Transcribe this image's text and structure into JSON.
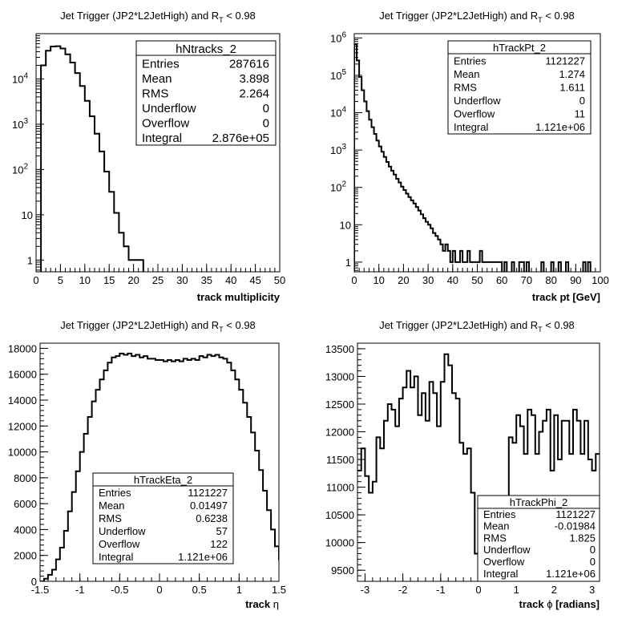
{
  "chart_data": [
    {
      "type": "histogram",
      "title": "Jet Trigger (JP2*L2JetHigh) and R",
      "title_sub": "T",
      "title_suffix": " < 0.98",
      "xlabel": "track multiplicity",
      "x_label_symbol": "",
      "x_label_suffix": "",
      "xlim": [
        0,
        50
      ],
      "x_ticks": [
        0,
        5,
        10,
        15,
        20,
        25,
        30,
        35,
        40,
        45,
        50
      ],
      "y_scale": "log",
      "ylim": [
        0.55,
        100000
      ],
      "y_ticks": [
        {
          "v": 1,
          "base": "1",
          "exp": ""
        },
        {
          "v": 10,
          "base": "10",
          "exp": ""
        },
        {
          "v": 100,
          "base": "10",
          "exp": "2"
        },
        {
          "v": 1000,
          "base": "10",
          "exp": "3"
        },
        {
          "v": 10000,
          "base": "10",
          "exp": "4"
        }
      ],
      "bin_width": 1,
      "values": [
        0,
        20000,
        42000,
        52000,
        53000,
        47000,
        35000,
        23000,
        13500,
        7000,
        3300,
        1500,
        620,
        250,
        90,
        32,
        11,
        4,
        2,
        1,
        1,
        1,
        0,
        0,
        0
      ],
      "stats": {
        "name": "hNtracks_2",
        "rows": [
          {
            "label": "Entries",
            "value": "287616"
          },
          {
            "label": "Mean",
            "value": "3.898"
          },
          {
            "label": "RMS",
            "value": "2.264"
          },
          {
            "label": "Underflow",
            "value": "0"
          },
          {
            "label": "Overflow",
            "value": "0"
          },
          {
            "label": "Integral",
            "value": "2.876e+05"
          }
        ]
      }
    },
    {
      "type": "histogram",
      "title": "Jet Trigger (JP2*L2JetHigh) and R",
      "title_sub": "T",
      "title_suffix": " < 0.98",
      "xlabel": "track pt [GeV]",
      "x_label_symbol": "",
      "x_label_suffix": "",
      "xlim": [
        0,
        100
      ],
      "x_ticks": [
        0,
        10,
        20,
        30,
        40,
        50,
        60,
        70,
        80,
        90,
        100
      ],
      "y_scale": "log",
      "ylim": [
        0.55,
        1300000
      ],
      "y_ticks": [
        {
          "v": 1,
          "base": "1",
          "exp": ""
        },
        {
          "v": 10,
          "base": "10",
          "exp": ""
        },
        {
          "v": 100,
          "base": "10",
          "exp": "2"
        },
        {
          "v": 1000,
          "base": "10",
          "exp": "3"
        },
        {
          "v": 10000,
          "base": "10",
          "exp": "4"
        },
        {
          "v": 100000,
          "base": "10",
          "exp": "5"
        },
        {
          "v": 1000000,
          "base": "10",
          "exp": "6"
        }
      ],
      "bin_width": 1,
      "values": [
        680000,
        250000,
        90000,
        40000,
        20000,
        11000,
        6500,
        4100,
        2700,
        1800,
        1250,
        900,
        650,
        480,
        360,
        280,
        220,
        170,
        135,
        105,
        85,
        68,
        55,
        45,
        37,
        30,
        24,
        19,
        15,
        12,
        10,
        8,
        6,
        5,
        4,
        3,
        2,
        3,
        2,
        1,
        2,
        1,
        1,
        2,
        1,
        1,
        2,
        1,
        1,
        1,
        1,
        2,
        1,
        1,
        1,
        1,
        1,
        1,
        1,
        1,
        0,
        1,
        0,
        0,
        1,
        0,
        0,
        1,
        1,
        0,
        1,
        0,
        0,
        0,
        0,
        0,
        1,
        0,
        0,
        0,
        1,
        0,
        0,
        1,
        0,
        0,
        1,
        0,
        0,
        0,
        0,
        0,
        0,
        1,
        0,
        1,
        0,
        0,
        0,
        0
      ],
      "stats": {
        "name": "hTrackPt_2",
        "rows": [
          {
            "label": "Entries",
            "value": "1121227"
          },
          {
            "label": "Mean",
            "value": "1.274"
          },
          {
            "label": "RMS",
            "value": "1.611"
          },
          {
            "label": "Underflow",
            "value": "0"
          },
          {
            "label": "Overflow",
            "value": "11"
          },
          {
            "label": "Integral",
            "value": "1.121e+06"
          }
        ]
      }
    },
    {
      "type": "histogram",
      "title": "Jet Trigger (JP2*L2JetHigh) and R",
      "title_sub": "T",
      "title_suffix": " < 0.98",
      "xlabel": "track ",
      "x_label_symbol": "η",
      "x_label_suffix": "",
      "xlim": [
        -1.5,
        1.5
      ],
      "x_ticks": [
        -1.5,
        -1,
        -0.5,
        0,
        0.5,
        1,
        1.5
      ],
      "y_scale": "linear",
      "ylim": [
        0,
        18400
      ],
      "y_ticks": [
        {
          "v": 0,
          "base": "0",
          "exp": ""
        },
        {
          "v": 2000,
          "base": "2000",
          "exp": ""
        },
        {
          "v": 4000,
          "base": "4000",
          "exp": ""
        },
        {
          "v": 6000,
          "base": "6000",
          "exp": ""
        },
        {
          "v": 8000,
          "base": "8000",
          "exp": ""
        },
        {
          "v": 10000,
          "base": "10000",
          "exp": ""
        },
        {
          "v": 12000,
          "base": "12000",
          "exp": ""
        },
        {
          "v": 14000,
          "base": "14000",
          "exp": ""
        },
        {
          "v": 16000,
          "base": "16000",
          "exp": ""
        },
        {
          "v": 18000,
          "base": "18000",
          "exp": ""
        }
      ],
      "bin_width": 0.05,
      "values": [
        0,
        200,
        500,
        900,
        1700,
        2600,
        3900,
        5400,
        6900,
        8500,
        10000,
        11400,
        12700,
        13900,
        14800,
        15600,
        16300,
        16900,
        17300,
        17400,
        17600,
        17500,
        17600,
        17400,
        17500,
        17300,
        17400,
        17200,
        17200,
        17100,
        17100,
        17000,
        17100,
        17000,
        17100,
        17000,
        17200,
        17100,
        17200,
        17100,
        17400,
        17300,
        17500,
        17400,
        17500,
        17300,
        17200,
        16900,
        16300,
        15600,
        14800,
        13800,
        12700,
        11500,
        10100,
        8600,
        7000,
        5500,
        4000,
        2700,
        1700,
        900,
        400,
        100
      ],
      "stats": {
        "name": "hTrackEta_2",
        "rows": [
          {
            "label": "Entries",
            "value": "1121227"
          },
          {
            "label": "Mean",
            "value": "0.01497"
          },
          {
            "label": "RMS",
            "value": "0.6238"
          },
          {
            "label": "Underflow",
            "value": "57"
          },
          {
            "label": "Overflow",
            "value": "122"
          },
          {
            "label": "Integral",
            "value": "1.121e+06"
          }
        ]
      }
    },
    {
      "type": "histogram",
      "title": "Jet Trigger (JP2*L2JetHigh) and R",
      "title_sub": "T",
      "title_suffix": " < 0.98",
      "xlabel": "track ",
      "x_label_symbol": "ϕ",
      "x_label_suffix": " [radians]",
      "xlim": [
        -3.2,
        3.2
      ],
      "x_ticks": [
        -3,
        -2,
        -1,
        0,
        1,
        2,
        3
      ],
      "y_scale": "linear",
      "ylim": [
        9300,
        13600
      ],
      "y_ticks": [
        {
          "v": 9500,
          "base": "9500",
          "exp": ""
        },
        {
          "v": 10000,
          "base": "10000",
          "exp": ""
        },
        {
          "v": 10500,
          "base": "10500",
          "exp": ""
        },
        {
          "v": 11000,
          "base": "11000",
          "exp": ""
        },
        {
          "v": 11500,
          "base": "11500",
          "exp": ""
        },
        {
          "v": 12000,
          "base": "12000",
          "exp": ""
        },
        {
          "v": 12500,
          "base": "12500",
          "exp": ""
        },
        {
          "v": 13000,
          "base": "13000",
          "exp": ""
        },
        {
          "v": 13500,
          "base": "13500",
          "exp": ""
        }
      ],
      "bin_width": 0.1,
      "values": [
        11300,
        11700,
        11200,
        10900,
        11100,
        11900,
        11700,
        12200,
        12500,
        12400,
        12100,
        12600,
        12800,
        13100,
        12800,
        13000,
        12300,
        12700,
        12200,
        12900,
        12700,
        12100,
        12900,
        13400,
        13200,
        12700,
        12600,
        11800,
        11600,
        11700,
        10900,
        9800,
        9400,
        10300,
        10400,
        10200,
        10000,
        10300,
        10700,
        10800,
        11900,
        11800,
        12300,
        12100,
        11600,
        12400,
        12300,
        11600,
        12000,
        12200,
        12400,
        11300,
        12300,
        11500,
        12200,
        12200,
        11600,
        12400,
        12200,
        11600,
        12200,
        11500,
        11300,
        11600
      ],
      "stats": {
        "name": "hTrackPhi_2",
        "rows": [
          {
            "label": "Entries",
            "value": "1121227"
          },
          {
            "label": "Mean",
            "value": "-0.01984"
          },
          {
            "label": "RMS",
            "value": "1.825"
          },
          {
            "label": "Underflow",
            "value": "0"
          },
          {
            "label": "Overflow",
            "value": "0"
          },
          {
            "label": "Integral",
            "value": "1.121e+06"
          }
        ]
      }
    }
  ]
}
